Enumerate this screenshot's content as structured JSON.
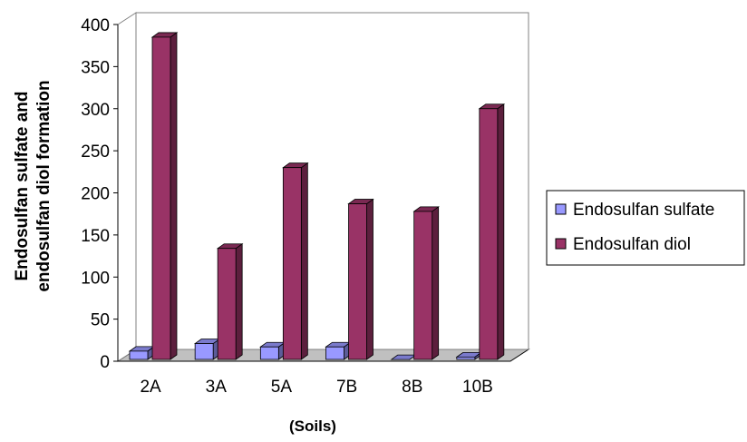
{
  "chart_data": {
    "type": "bar",
    "categories": [
      "2A",
      "3A",
      "5A",
      "7B",
      "8B",
      "10B"
    ],
    "series": [
      {
        "name": "Endosulfan sulfate",
        "values": [
          12,
          21,
          17,
          17,
          2,
          5
        ],
        "color": "#9999ff"
      },
      {
        "name": "Endosulfan diol",
        "values": [
          385,
          134,
          230,
          187,
          178,
          300
        ],
        "color": "#993366"
      }
    ],
    "title": "",
    "xlabel": "(Soils)",
    "ylabel_lines": [
      "Endosulfan sulfate and",
      "endosulfan diol formation"
    ],
    "ylim": [
      0,
      400
    ],
    "yticks": [
      "0",
      "50",
      "100",
      "150",
      "200",
      "250",
      "300",
      "350",
      "400"
    ],
    "grid": false,
    "legend_position": "right",
    "style": "3d-clustered-column"
  }
}
